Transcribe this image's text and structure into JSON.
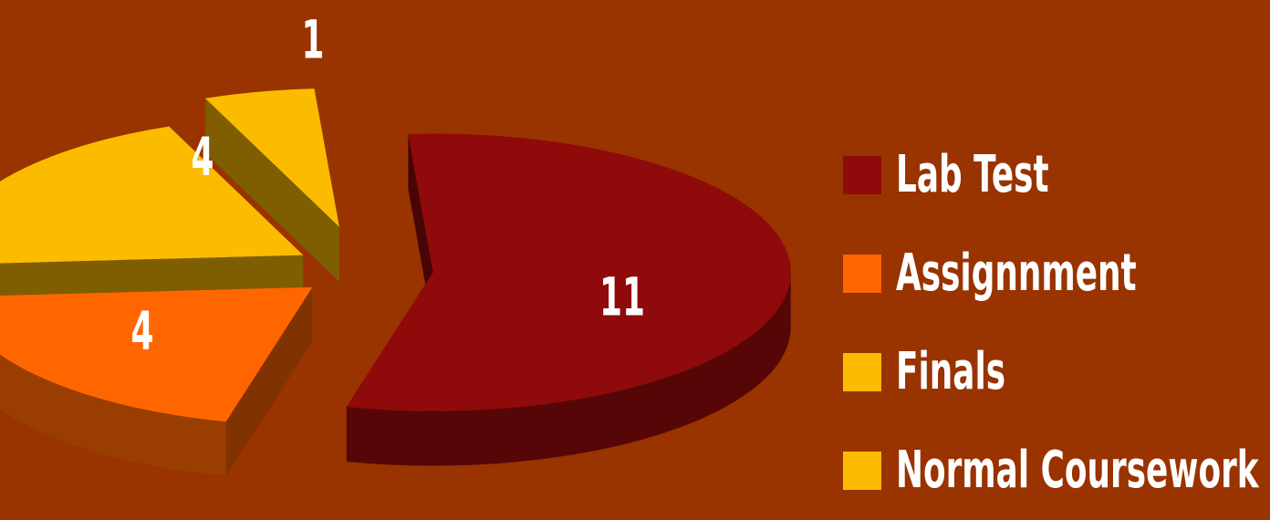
{
  "chart_data": {
    "type": "pie",
    "style": "3d-exploded",
    "categories": [
      "Lab Test",
      "Assignnment",
      "Finals",
      "Normal Coursework"
    ],
    "values": [
      11,
      4,
      4,
      1
    ],
    "colors": [
      "#8f0a0a",
      "#ff6600",
      "#fbbc00",
      "#fbbc00"
    ],
    "data_labels": [
      "11",
      "4",
      "4",
      "1"
    ],
    "legend_position": "right",
    "title": "",
    "background": "#993300"
  }
}
